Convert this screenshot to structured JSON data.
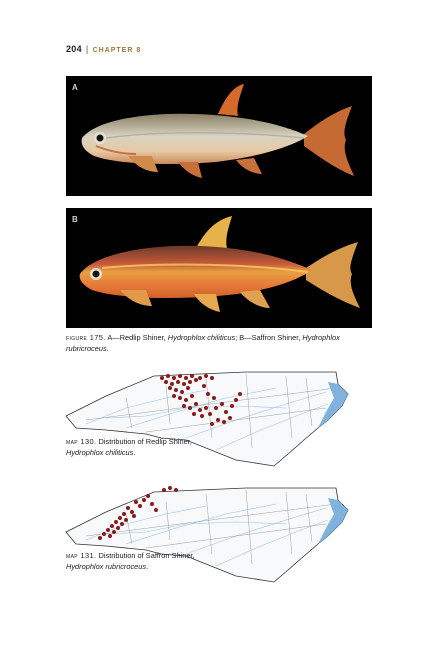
{
  "header": {
    "page_number": "204",
    "separator": "|",
    "chapter": "CHAPTER 8"
  },
  "photos": [
    {
      "label": "A"
    },
    {
      "label": "B"
    }
  ],
  "figure_caption": {
    "prefix": "figure 175.",
    "part_a": " A—Redlip Shiner, ",
    "species_a": "Hydrophlox chiliticus",
    "mid": "; B—Saffron Shiner, ",
    "species_b": "Hydrophlox rubricroceus",
    "end": "."
  },
  "maps": [
    {
      "prefix": "map 130.",
      "text": " Distribution of Redlip Shiner,",
      "species": "Hydrophlox chiliticus",
      "end": "."
    },
    {
      "prefix": "map 131.",
      "text": " Distribution of Saffron Shiner,",
      "species": "Hydrophlox rubricroceus",
      "end": "."
    }
  ],
  "colors": {
    "record_dot": "#8b1a1a",
    "sound_water": "#7fb3dd",
    "river": "#9cc3e4",
    "county": "#555555"
  }
}
